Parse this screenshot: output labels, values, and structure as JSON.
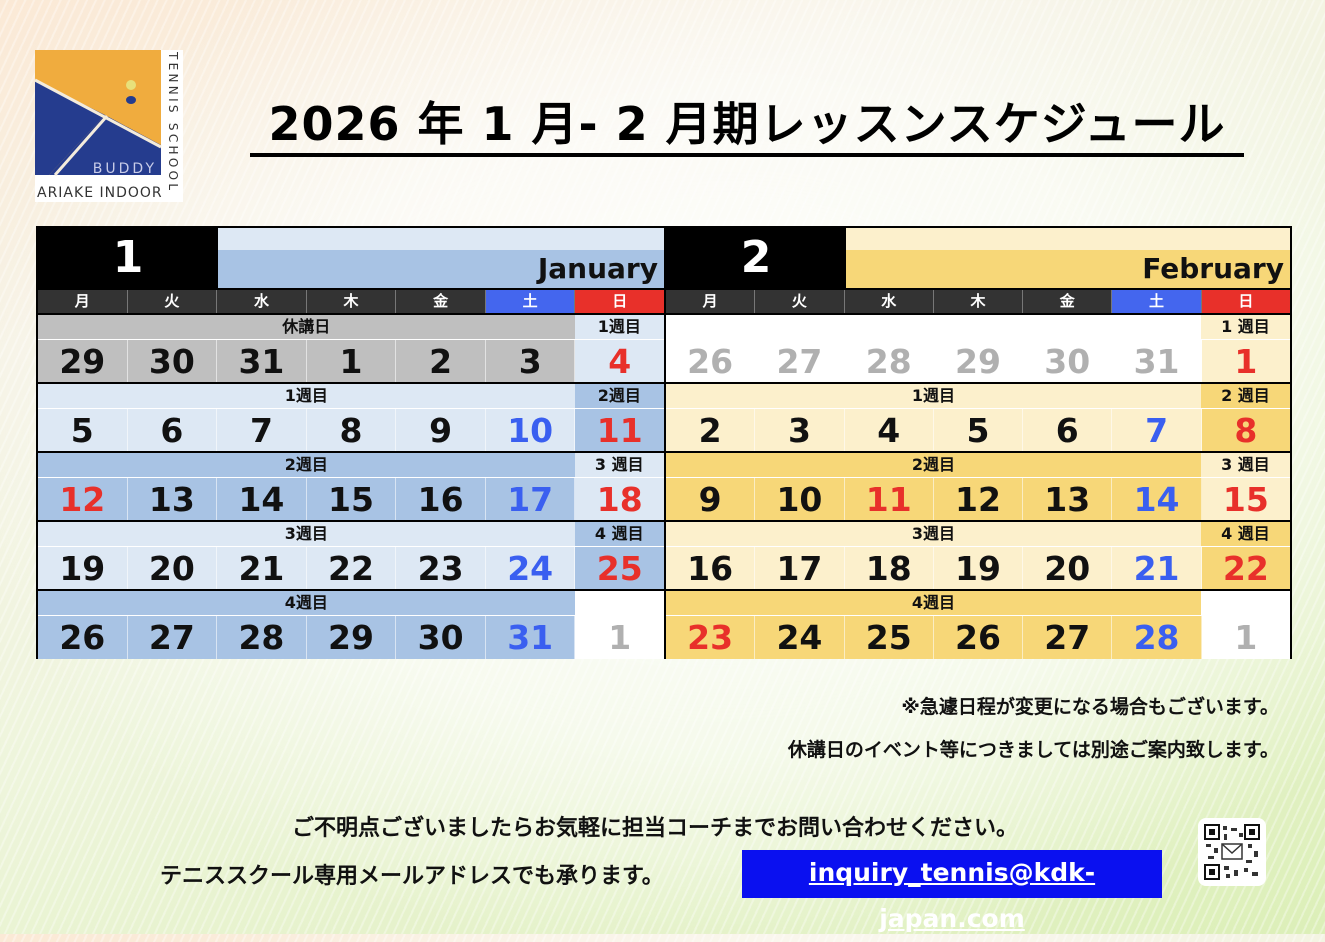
{
  "logo": {
    "text_side": "TENNIS SCHOOL",
    "text_brand": "BUDDY",
    "text_bottom": "ARIAKE INDOOR"
  },
  "title": "2026 年 1 月- 2 月期レッスンスケジュール",
  "colors": {
    "black": "#111111",
    "blue": "#3a5ff0",
    "red": "#e8302a",
    "gray": "#b0b0b0",
    "gray_bg": "#bfbfbf",
    "jan_light": "#dde8f4",
    "jan_mid": "#a8c3e4",
    "white": "#ffffff",
    "feb_light": "#fcf0cc",
    "feb_mid": "#f7d778",
    "sat_head": "#4466ee",
    "sun_head": "#e8302a"
  },
  "weekdays": [
    "月",
    "火",
    "水",
    "木",
    "金",
    "土",
    "日"
  ],
  "months": [
    {
      "number": "1",
      "name": "January",
      "strip": "jan_light",
      "band": "jan_mid",
      "weeks": [
        {
          "label": "休講日",
          "sun_label": "1週目",
          "bg": "gray_bg",
          "sun_bg": "jan_light",
          "days": [
            [
              "29",
              "k"
            ],
            [
              "30",
              "k"
            ],
            [
              "31",
              "k"
            ],
            [
              "1",
              "k"
            ],
            [
              "2",
              "k"
            ],
            [
              "3",
              "k"
            ],
            [
              "4",
              "r"
            ]
          ]
        },
        {
          "label": "1週目",
          "sun_label": "2週目",
          "bg": "jan_light",
          "sun_bg": "jan_mid",
          "days": [
            [
              "5",
              "k"
            ],
            [
              "6",
              "k"
            ],
            [
              "7",
              "k"
            ],
            [
              "8",
              "k"
            ],
            [
              "9",
              "k"
            ],
            [
              "10",
              "b"
            ],
            [
              "11",
              "r"
            ]
          ]
        },
        {
          "label": "2週目",
          "sun_label": "3 週目",
          "bg": "jan_mid",
          "sun_bg": "jan_light",
          "days": [
            [
              "12",
              "r"
            ],
            [
              "13",
              "k"
            ],
            [
              "14",
              "k"
            ],
            [
              "15",
              "k"
            ],
            [
              "16",
              "k"
            ],
            [
              "17",
              "b"
            ],
            [
              "18",
              "r"
            ]
          ]
        },
        {
          "label": "3週目",
          "sun_label": "4 週目",
          "bg": "jan_light",
          "sun_bg": "jan_mid",
          "days": [
            [
              "19",
              "k"
            ],
            [
              "20",
              "k"
            ],
            [
              "21",
              "k"
            ],
            [
              "22",
              "k"
            ],
            [
              "23",
              "k"
            ],
            [
              "24",
              "b"
            ],
            [
              "25",
              "r"
            ]
          ]
        },
        {
          "label": "4週目",
          "sun_label": "",
          "bg": "jan_mid",
          "sun_bg": "white",
          "days": [
            [
              "26",
              "k"
            ],
            [
              "27",
              "k"
            ],
            [
              "28",
              "k"
            ],
            [
              "29",
              "k"
            ],
            [
              "30",
              "k"
            ],
            [
              "31",
              "b"
            ],
            [
              "1",
              "g"
            ]
          ]
        }
      ]
    },
    {
      "number": "2",
      "name": "February",
      "strip": "feb_light",
      "band": "feb_mid",
      "weeks": [
        {
          "label": "",
          "sun_label": "1 週目",
          "bg": "white",
          "sun_bg": "feb_light",
          "days": [
            [
              "26",
              "g"
            ],
            [
              "27",
              "g"
            ],
            [
              "28",
              "g"
            ],
            [
              "29",
              "g"
            ],
            [
              "30",
              "g"
            ],
            [
              "31",
              "g"
            ],
            [
              "1",
              "r"
            ]
          ]
        },
        {
          "label": "1週目",
          "sun_label": "2 週目",
          "bg": "feb_light",
          "sun_bg": "feb_mid",
          "days": [
            [
              "2",
              "k"
            ],
            [
              "3",
              "k"
            ],
            [
              "4",
              "k"
            ],
            [
              "5",
              "k"
            ],
            [
              "6",
              "k"
            ],
            [
              "7",
              "b"
            ],
            [
              "8",
              "r"
            ]
          ]
        },
        {
          "label": "2週目",
          "sun_label": "3 週目",
          "bg": "feb_mid",
          "sun_bg": "feb_light",
          "days": [
            [
              "9",
              "k"
            ],
            [
              "10",
              "k"
            ],
            [
              "11",
              "r"
            ],
            [
              "12",
              "k"
            ],
            [
              "13",
              "k"
            ],
            [
              "14",
              "b"
            ],
            [
              "15",
              "r"
            ]
          ]
        },
        {
          "label": "3週目",
          "sun_label": "4 週目",
          "bg": "feb_light",
          "sun_bg": "feb_mid",
          "days": [
            [
              "16",
              "k"
            ],
            [
              "17",
              "k"
            ],
            [
              "18",
              "k"
            ],
            [
              "19",
              "k"
            ],
            [
              "20",
              "k"
            ],
            [
              "21",
              "b"
            ],
            [
              "22",
              "r"
            ]
          ]
        },
        {
          "label": "4週目",
          "sun_label": "",
          "bg": "feb_mid",
          "sun_bg": "white",
          "days": [
            [
              "23",
              "r"
            ],
            [
              "24",
              "k"
            ],
            [
              "25",
              "k"
            ],
            [
              "26",
              "k"
            ],
            [
              "27",
              "k"
            ],
            [
              "28",
              "b"
            ],
            [
              "1",
              "g"
            ]
          ]
        }
      ]
    }
  ],
  "notes": [
    "※急遽日程が変更になる場合もございます。",
    "休講日のイベント等につきましては別途ご案内致します。"
  ],
  "footer": {
    "line1": "ご不明点ございましたらお気軽に担当コーチまでお問い合わせください。",
    "line2": "テニススクール専用メールアドレスでも承ります。",
    "email": "inquiry_tennis@kdk-japan.com"
  },
  "qr_icon": "qr-code-mail-icon"
}
